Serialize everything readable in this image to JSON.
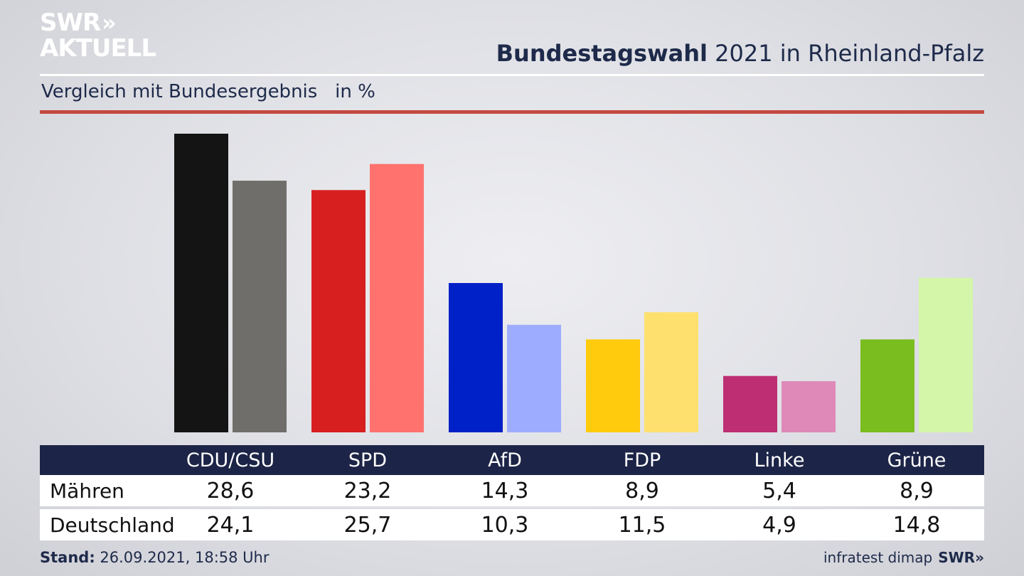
{
  "brand": {
    "line1": "SWR",
    "arrows": "»",
    "line2": "AKTUELL",
    "footer_logo": "SWR»"
  },
  "title": {
    "bold": "Bundestagswahl",
    "rest": " 2021 in Rheinland-Pfalz"
  },
  "subtitle": "Vergleich mit Bundesergebnis   in %",
  "table": {
    "headers": [
      "CDU/CSU",
      "SPD",
      "AfD",
      "FDP",
      "Linke",
      "Grüne"
    ],
    "rows": [
      {
        "label": "Mähren",
        "values": [
          "28,6",
          "23,2",
          "14,3",
          "8,9",
          "5,4",
          "8,9"
        ]
      },
      {
        "label": "Deutschland",
        "values": [
          "24,1",
          "25,7",
          "10,3",
          "11,5",
          "4,9",
          "14,8"
        ]
      }
    ]
  },
  "footer": {
    "stand_label": "Stand:",
    "stand_value": " 26.09.2021, 18:58 Uhr",
    "source": "infratest dimap"
  },
  "chart_data": {
    "type": "bar",
    "categories": [
      "CDU/CSU",
      "SPD",
      "AfD",
      "FDP",
      "Linke",
      "Grüne"
    ],
    "series": [
      {
        "name": "Mähren",
        "values": [
          28.6,
          23.2,
          14.3,
          8.9,
          5.4,
          8.9
        ],
        "colors": [
          "#141414",
          "#d71f1f",
          "#0021c7",
          "#ffcb0c",
          "#bd2e72",
          "#79bd1f"
        ]
      },
      {
        "name": "Deutschland",
        "values": [
          24.1,
          25.7,
          10.3,
          11.5,
          4.9,
          14.8
        ],
        "colors": [
          "#706e6b",
          "#ff726e",
          "#9eacff",
          "#fde06e",
          "#de89b8",
          "#d4f6a8"
        ]
      }
    ],
    "ylim": [
      0,
      28.6
    ],
    "grid": false,
    "legend": "table below chart"
  }
}
